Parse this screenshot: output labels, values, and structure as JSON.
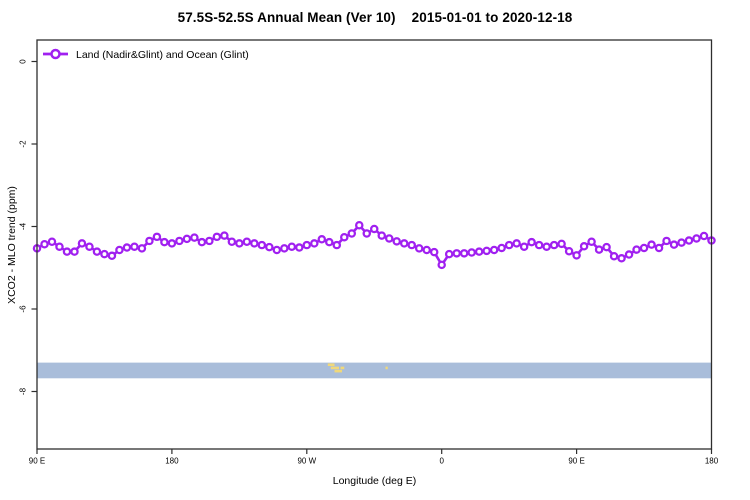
{
  "title": {
    "main": "57.5S-52.5S Annual Mean (Ver 10)",
    "dates": "2015-01-01 to 2020-12-18"
  },
  "legend": {
    "label": "Land (Nadir&Glint) and Ocean (Glint)",
    "position": "top-left"
  },
  "axes": {
    "x_label": "Longitude (deg E)",
    "y_label": "XCO2 - MLO trend (ppm)",
    "x_ticks": [
      {
        "value": 90,
        "label": "90 E"
      },
      {
        "value": 180,
        "label": "180"
      },
      {
        "value": 270,
        "label": "90 W"
      },
      {
        "value": 360,
        "label": "0"
      },
      {
        "value": 450,
        "label": "90 E"
      },
      {
        "value": 540,
        "label": "180"
      }
    ],
    "y_ticks": [
      {
        "value": 0,
        "label": "0"
      },
      {
        "value": -2,
        "label": "-2"
      },
      {
        "value": -4,
        "label": "-4"
      },
      {
        "value": -6,
        "label": "-6"
      },
      {
        "value": -8,
        "label": "-8"
      }
    ]
  },
  "colors": {
    "series": "#A020F0",
    "marker_fill": "#ffffff",
    "ocean_band": "#a9bdda",
    "land_mark": "#f0d87a",
    "frame": "#2e2e2e",
    "text": "#000000"
  },
  "chart_data": {
    "type": "line",
    "title": "57.5S-52.5S Annual Mean (Ver 10)   2015-01-01 to 2020-12-18",
    "xlabel": "Longitude (deg E)",
    "ylabel": "XCO2 - MLO trend (ppm)",
    "xlim": [
      90,
      540
    ],
    "ylim": [
      -9.4,
      0.5
    ],
    "grid": false,
    "legend_position": "top-left inside plot",
    "x_deg_east": [
      90,
      95,
      100,
      105,
      110,
      115,
      120,
      125,
      130,
      135,
      140,
      145,
      150,
      155,
      160,
      165,
      170,
      175,
      180,
      185,
      190,
      195,
      200,
      205,
      210,
      215,
      220,
      225,
      230,
      235,
      240,
      245,
      250,
      255,
      260,
      265,
      270,
      275,
      280,
      285,
      290,
      295,
      300,
      305,
      310,
      315,
      320,
      325,
      330,
      335,
      340,
      345,
      350,
      355,
      360,
      365,
      370,
      375,
      380,
      385,
      390,
      395,
      400,
      405,
      410,
      415,
      420,
      425,
      430,
      435,
      440,
      445,
      450,
      455,
      460,
      465,
      470,
      475,
      480,
      485,
      490,
      495,
      500,
      505,
      510,
      515,
      520,
      525,
      530,
      535,
      540
    ],
    "series": [
      {
        "name": "Land (Nadir&Glint) and Ocean (Glint)",
        "marker": "open-circle",
        "color": "#A020F0",
        "values": [
          -4.53,
          -4.43,
          -4.37,
          -4.49,
          -4.61,
          -4.61,
          -4.41,
          -4.49,
          -4.61,
          -4.67,
          -4.71,
          -4.57,
          -4.51,
          -4.49,
          -4.53,
          -4.35,
          -4.25,
          -4.38,
          -4.41,
          -4.35,
          -4.3,
          -4.27,
          -4.38,
          -4.35,
          -4.25,
          -4.22,
          -4.37,
          -4.41,
          -4.37,
          -4.41,
          -4.45,
          -4.5,
          -4.57,
          -4.53,
          -4.49,
          -4.51,
          -4.45,
          -4.41,
          -4.31,
          -4.38,
          -4.45,
          -4.26,
          -4.17,
          -3.97,
          -4.17,
          -4.06,
          -4.22,
          -4.29,
          -4.36,
          -4.41,
          -4.45,
          -4.53,
          -4.57,
          -4.62,
          -4.93,
          -4.67,
          -4.65,
          -4.65,
          -4.63,
          -4.61,
          -4.59,
          -4.57,
          -4.52,
          -4.45,
          -4.41,
          -4.49,
          -4.38,
          -4.45,
          -4.49,
          -4.45,
          -4.42,
          -4.6,
          -4.7,
          -4.48,
          -4.37,
          -4.56,
          -4.5,
          -4.72,
          -4.77,
          -4.68,
          -4.56,
          -4.52,
          -4.44,
          -4.52,
          -4.35,
          -4.44,
          -4.39,
          -4.34,
          -4.29,
          -4.23,
          -4.34
        ]
      }
    ],
    "surface_strip": {
      "description": "latitude-band surface map strip: ocean with small land marks",
      "y_from": -7.3,
      "y_to": -7.68,
      "ocean_color": "#a9bdda",
      "land_color": "#f0d87a",
      "land_marks": [
        {
          "lon0": 284.0,
          "lon1": 288.5,
          "row": 0
        },
        {
          "lon0": 286.0,
          "lon1": 291.5,
          "row": 1
        },
        {
          "lon0": 288.5,
          "lon1": 293.5,
          "row": 2
        },
        {
          "lon0": 292.5,
          "lon1": 295.0,
          "row": 1
        },
        {
          "lon0": 322.5,
          "lon1": 324.0,
          "row": 1
        }
      ]
    }
  }
}
